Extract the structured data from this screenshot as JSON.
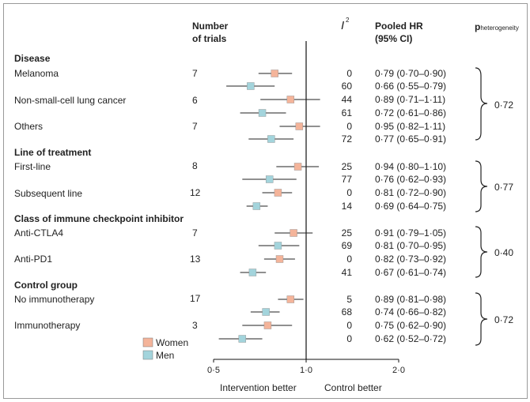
{
  "headers": {
    "trials": [
      "Number",
      "of trials"
    ],
    "i2": "I",
    "i2_sup": "2",
    "hr": [
      "Pooled HR",
      "(95% CI)"
    ],
    "phet_main": "p",
    "phet_sub": "heterogeneity"
  },
  "groups": [
    {
      "title": "Disease",
      "p_het": "0·72",
      "subgroups": [
        {
          "label": "Melanoma",
          "trials": "7"
        },
        {
          "label": "Non-small-cell lung cancer",
          "trials": "6"
        },
        {
          "label": "Others",
          "trials": "7"
        }
      ]
    },
    {
      "title": "Line of treatment",
      "p_het": "0·77",
      "subgroups": [
        {
          "label": "First-line",
          "trials": "8"
        },
        {
          "label": "Subsequent line",
          "trials": "12"
        }
      ]
    },
    {
      "title": "Class of immune checkpoint inhibitor",
      "p_het": "0·40",
      "subgroups": [
        {
          "label": "Anti-CTLA4",
          "trials": "7"
        },
        {
          "label": "Anti-PD1",
          "trials": "13"
        }
      ]
    },
    {
      "title": "Control group",
      "p_het": "0·72",
      "subgroups": [
        {
          "label": "No immunotherapy",
          "trials": "17"
        },
        {
          "label": "Immunotherapy",
          "trials": "3"
        }
      ]
    }
  ],
  "chart_data": {
    "type": "forest",
    "xscale": "log",
    "xlim": [
      0.5,
      2.0
    ],
    "reference_line": 1.0,
    "ticks": [
      {
        "value": 0.5,
        "label": "0·5"
      },
      {
        "value": 1.0,
        "label": "1·0"
      },
      {
        "value": 2.0,
        "label": "2·0"
      }
    ],
    "xlabel_left": "Intervention better",
    "xlabel_right": "Control better",
    "legend": [
      {
        "name": "Women",
        "color": "#f4b49a"
      },
      {
        "name": "Men",
        "color": "#a3d4dc"
      }
    ],
    "rows": [
      {
        "subgroup": "Melanoma",
        "sex": "Women",
        "hr": 0.79,
        "lo": 0.7,
        "hi": 0.9,
        "i2": "0",
        "text": "0·79 (0·70–0·90)"
      },
      {
        "subgroup": "Melanoma",
        "sex": "Men",
        "hr": 0.66,
        "lo": 0.55,
        "hi": 0.79,
        "i2": "60",
        "text": "0·66 (0·55–0·79)"
      },
      {
        "subgroup": "Non-small-cell lung cancer",
        "sex": "Women",
        "hr": 0.89,
        "lo": 0.71,
        "hi": 1.11,
        "i2": "44",
        "text": "0·89 (0·71–1·11)"
      },
      {
        "subgroup": "Non-small-cell lung cancer",
        "sex": "Men",
        "hr": 0.72,
        "lo": 0.61,
        "hi": 0.86,
        "i2": "61",
        "text": "0·72 (0·61–0·86)"
      },
      {
        "subgroup": "Others",
        "sex": "Women",
        "hr": 0.95,
        "lo": 0.82,
        "hi": 1.11,
        "i2": "0",
        "text": "0·95 (0·82–1·11)"
      },
      {
        "subgroup": "Others",
        "sex": "Men",
        "hr": 0.77,
        "lo": 0.65,
        "hi": 0.91,
        "i2": "72",
        "text": "0·77 (0·65–0·91)"
      },
      {
        "subgroup": "First-line",
        "sex": "Women",
        "hr": 0.94,
        "lo": 0.8,
        "hi": 1.1,
        "i2": "25",
        "text": "0·94 (0·80–1·10)"
      },
      {
        "subgroup": "First-line",
        "sex": "Men",
        "hr": 0.76,
        "lo": 0.62,
        "hi": 0.93,
        "i2": "77",
        "text": "0·76 (0·62–0·93)"
      },
      {
        "subgroup": "Subsequent line",
        "sex": "Women",
        "hr": 0.81,
        "lo": 0.72,
        "hi": 0.9,
        "i2": "0",
        "text": "0·81 (0·72–0·90)"
      },
      {
        "subgroup": "Subsequent line",
        "sex": "Men",
        "hr": 0.69,
        "lo": 0.64,
        "hi": 0.75,
        "i2": "14",
        "text": "0·69 (0·64–0·75)"
      },
      {
        "subgroup": "Anti-CTLA4",
        "sex": "Women",
        "hr": 0.91,
        "lo": 0.79,
        "hi": 1.05,
        "i2": "25",
        "text": "0·91 (0·79–1·05)"
      },
      {
        "subgroup": "Anti-CTLA4",
        "sex": "Men",
        "hr": 0.81,
        "lo": 0.7,
        "hi": 0.95,
        "i2": "69",
        "text": "0·81 (0·70–0·95)"
      },
      {
        "subgroup": "Anti-PD1",
        "sex": "Women",
        "hr": 0.82,
        "lo": 0.73,
        "hi": 0.92,
        "i2": "0",
        "text": "0·82 (0·73–0·92)"
      },
      {
        "subgroup": "Anti-PD1",
        "sex": "Men",
        "hr": 0.67,
        "lo": 0.61,
        "hi": 0.74,
        "i2": "41",
        "text": "0·67 (0·61–0·74)"
      },
      {
        "subgroup": "No immunotherapy",
        "sex": "Women",
        "hr": 0.89,
        "lo": 0.81,
        "hi": 0.98,
        "i2": "5",
        "text": "0·89 (0·81–0·98)"
      },
      {
        "subgroup": "No immunotherapy",
        "sex": "Men",
        "hr": 0.74,
        "lo": 0.66,
        "hi": 0.82,
        "i2": "68",
        "text": "0·74 (0·66–0·82)"
      },
      {
        "subgroup": "Immunotherapy",
        "sex": "Women",
        "hr": 0.75,
        "lo": 0.62,
        "hi": 0.9,
        "i2": "0",
        "text": "0·75 (0·62–0·90)"
      },
      {
        "subgroup": "Immunotherapy",
        "sex": "Men",
        "hr": 0.62,
        "lo": 0.52,
        "hi": 0.72,
        "i2": "0",
        "text": "0·62 (0·52–0·72)"
      }
    ]
  }
}
